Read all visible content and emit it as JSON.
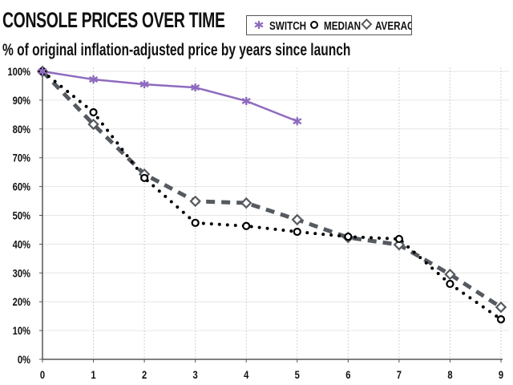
{
  "chart_data": {
    "type": "line",
    "title": "CONSOLE PRICES OVER TIME",
    "subtitle": "% of original inflation-adjusted price by years since launch",
    "xlabel": "",
    "ylabel": "",
    "x": [
      0,
      1,
      2,
      3,
      4,
      5,
      6,
      7,
      8,
      9
    ],
    "x_ticks": [
      "0",
      "1",
      "2",
      "3",
      "4",
      "5",
      "6",
      "7",
      "8",
      "9"
    ],
    "y_ticks": [
      "0%",
      "10%",
      "20%",
      "30%",
      "40%",
      "50%",
      "60%",
      "70%",
      "80%",
      "90%",
      "100%"
    ],
    "xlim": [
      0,
      9
    ],
    "ylim": [
      0,
      100
    ],
    "grid": true,
    "legend_position": "top-right",
    "series": [
      {
        "name": "SWITCH",
        "color": "#8e6bbf",
        "marker": "asterisk",
        "style": "solid",
        "values": [
          100,
          97.2,
          95.5,
          94.4,
          89.7,
          82.7,
          null,
          null,
          null,
          null
        ]
      },
      {
        "name": "MEDIAN",
        "color": "#000000",
        "marker": "circle",
        "style": "dotted",
        "values": [
          100,
          85.8,
          63.0,
          47.4,
          46.3,
          44.3,
          42.6,
          41.8,
          26.2,
          13.9
        ]
      },
      {
        "name": "AVERAGE",
        "color": "#555a60",
        "marker": "diamond",
        "style": "dashed",
        "values": [
          100,
          81.6,
          64.3,
          54.9,
          54.3,
          48.5,
          42.3,
          39.8,
          29.5,
          18.1
        ]
      }
    ]
  }
}
